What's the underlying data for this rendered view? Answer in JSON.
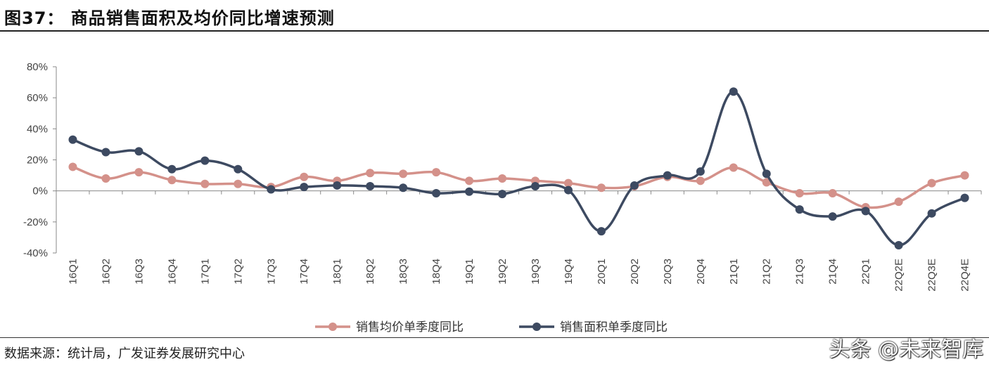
{
  "header": {
    "title": "图37：  商品销售面积及均价同比增速预测"
  },
  "footer": {
    "source": "数据来源：统计局，广发证券发展研究中心",
    "watermark": "头条 @未来智库"
  },
  "chart_data": {
    "type": "line",
    "title": "",
    "xlabel": "",
    "ylabel": "",
    "x": [
      "16Q1",
      "16Q2",
      "16Q3",
      "16Q4",
      "17Q1",
      "17Q2",
      "17Q3",
      "17Q4",
      "18Q1",
      "18Q2",
      "18Q3",
      "18Q4",
      "19Q1",
      "19Q2",
      "19Q3",
      "19Q4",
      "20Q1",
      "20Q2",
      "20Q3",
      "20Q4",
      "21Q1",
      "21Q2",
      "21Q3",
      "21Q4",
      "22Q1",
      "22Q2E",
      "22Q3E",
      "22Q4E"
    ],
    "ylim": [
      -40,
      80
    ],
    "yticks": [
      -40,
      -20,
      0,
      20,
      40,
      60,
      80
    ],
    "ytick_labels": [
      "-40%",
      "-20%",
      "0%",
      "20%",
      "40%",
      "60%",
      "80%"
    ],
    "legend_position": "bottom",
    "grid": false,
    "series": [
      {
        "name": "销售均价单季度同比",
        "color": "#d4918a",
        "values": [
          15.5,
          8,
          12,
          7,
          4.5,
          4.5,
          2.5,
          9,
          6.5,
          11.5,
          11,
          12,
          6.5,
          8,
          6.5,
          5,
          2,
          3,
          9,
          6.5,
          15,
          5.5,
          -1.5,
          -1.5,
          -10.5,
          -7,
          5,
          10
        ]
      },
      {
        "name": "销售面积单季度同比",
        "color": "#3d4a61",
        "values": [
          33,
          25,
          25.5,
          14,
          19.5,
          14,
          1,
          2.5,
          3.5,
          3,
          2,
          -1.5,
          -0.5,
          -2,
          3,
          0.5,
          -26,
          3.5,
          10,
          12.5,
          64,
          11,
          -12,
          -16.5,
          -13,
          -35,
          -14.5,
          -4.5
        ]
      }
    ]
  }
}
